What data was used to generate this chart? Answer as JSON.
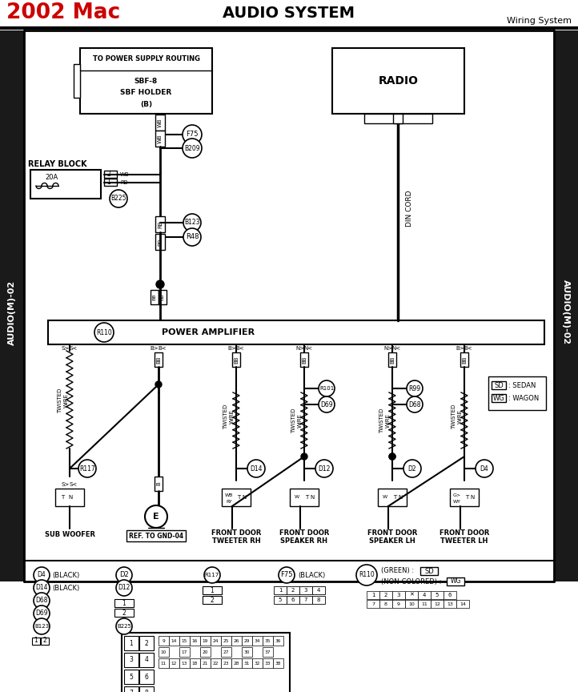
{
  "fig_width": 7.22,
  "fig_height": 8.64,
  "dpi": 100,
  "title_left": "2002 Mac",
  "title_center": "AUDIO SYSTEM",
  "title_right": "Wiring System",
  "title_left_color": "#cc0000",
  "sidebar_text": "AUDIO(M)-02",
  "bg": "#ffffff"
}
